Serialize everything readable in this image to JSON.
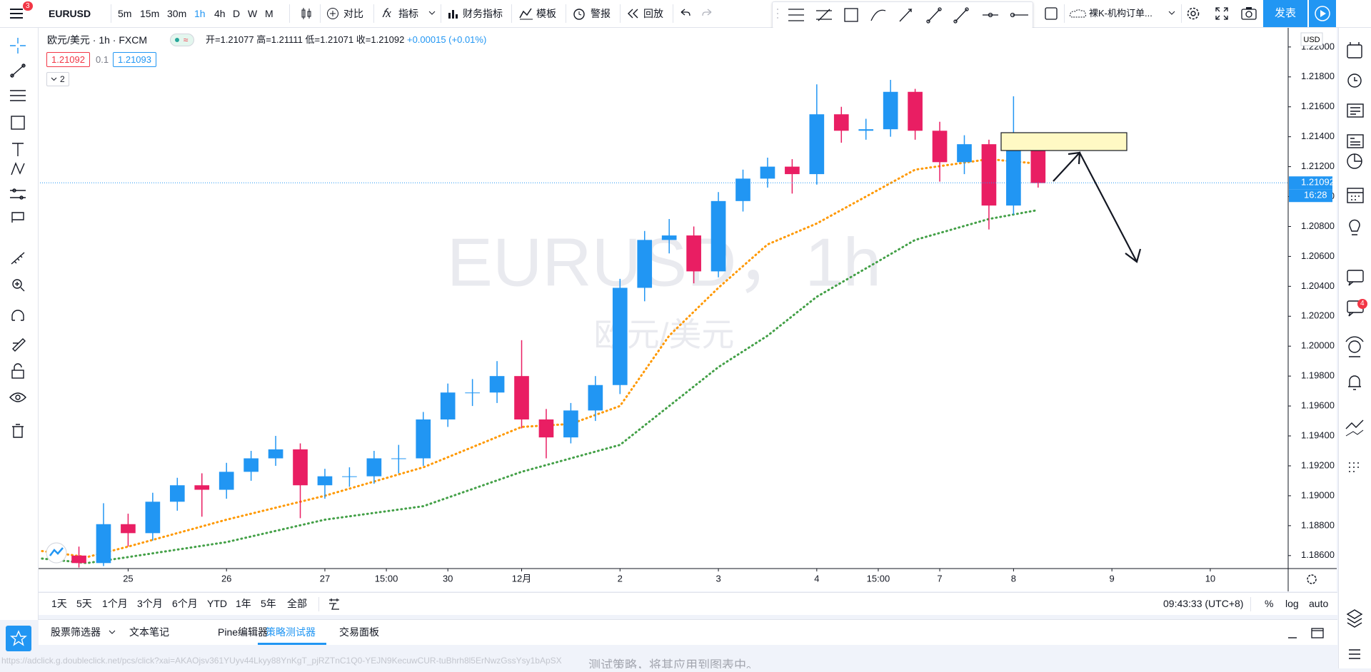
{
  "toolbar": {
    "symbol": "EURUSD",
    "notifications": "3",
    "intervals": [
      "5m",
      "15m",
      "30m",
      "1h",
      "4h",
      "D",
      "W",
      "M"
    ],
    "buttons": [
      "对比",
      "指标",
      "财务指标",
      "模板",
      "警报",
      "回放"
    ],
    "layout_name": "裸K-机构订单...",
    "publish": "发表"
  },
  "legend": {
    "symbol_line": "欧元/美元 · 1h · FXCM",
    "ohlc": [
      "开=1.21077",
      "高=1.21111",
      "低=1.21071",
      "收=1.21092",
      "+0.00015 (+0.01%)"
    ],
    "bid": "1.21092",
    "spread": "0.1",
    "ask": "1.21093",
    "collapsed": "2"
  },
  "chart_data": {
    "type": "candlestick",
    "title": "欧元/美元 · 1h · FXCM",
    "watermark": "EURUSD，1h",
    "watermark_sub": "欧元/美元",
    "currency": "USD",
    "x": [
      -12,
      -6,
      0,
      6,
      12,
      18,
      24,
      30,
      36,
      42,
      48,
      54,
      60,
      66,
      72,
      78,
      84,
      90,
      96,
      102,
      108,
      114,
      120,
      126,
      132,
      138,
      144,
      150,
      156,
      162,
      168,
      174,
      180,
      186,
      192,
      198,
      204,
      210,
      216,
      222
    ],
    "open": [
      1.186,
      1.1855,
      1.1881,
      1.1875,
      1.1896,
      1.1907,
      1.1904,
      1.1916,
      1.1925,
      1.1931,
      1.1907,
      1.1913,
      1.1913,
      1.1925,
      1.1925,
      1.1951,
      1.1969,
      1.1969,
      1.198,
      1.1951,
      1.1939,
      1.1957,
      1.1974,
      1.2039,
      1.2071,
      1.2074,
      1.205,
      1.2097,
      1.2112,
      1.212,
      1.2115,
      1.2155,
      1.2144,
      1.2145,
      1.217,
      1.2144,
      1.2123,
      1.2135,
      1.2094,
      1.2138
    ],
    "high": [
      1.1866,
      1.1895,
      1.1888,
      1.1902,
      1.1912,
      1.1915,
      1.1922,
      1.193,
      1.194,
      1.1935,
      1.1918,
      1.1919,
      1.193,
      1.1934,
      1.1956,
      1.1975,
      1.1978,
      1.199,
      1.2004,
      1.1958,
      1.1962,
      1.198,
      1.2045,
      1.2077,
      1.2085,
      1.208,
      1.2103,
      1.2118,
      1.2126,
      1.2125,
      1.2175,
      1.216,
      1.2152,
      1.2178,
      1.2172,
      1.215,
      1.2141,
      1.2138,
      1.2167,
      1.214
    ],
    "low": [
      1.1852,
      1.1853,
      1.1866,
      1.187,
      1.189,
      1.1886,
      1.1898,
      1.191,
      1.192,
      1.1885,
      1.1898,
      1.1906,
      1.1908,
      1.1915,
      1.192,
      1.1946,
      1.196,
      1.1962,
      1.1945,
      1.1925,
      1.1935,
      1.195,
      1.1968,
      1.203,
      1.2062,
      1.2042,
      1.2046,
      1.209,
      1.2106,
      1.2102,
      1.2108,
      1.2136,
      1.2138,
      1.214,
      1.2138,
      1.211,
      1.2115,
      1.2078,
      1.2088,
      1.2106
    ],
    "close": [
      1.1855,
      1.1881,
      1.1875,
      1.1896,
      1.1907,
      1.1904,
      1.1916,
      1.1925,
      1.1931,
      1.1907,
      1.1913,
      1.1913,
      1.1925,
      1.1925,
      1.1951,
      1.1969,
      1.1969,
      1.198,
      1.1951,
      1.1939,
      1.1957,
      1.1974,
      1.2039,
      1.2071,
      1.2074,
      1.205,
      1.2097,
      1.2112,
      1.212,
      1.2115,
      1.2155,
      1.2144,
      1.2145,
      1.217,
      1.2144,
      1.2123,
      1.2135,
      1.2094,
      1.2138,
      1.2109
    ],
    "up_color": "#2196f3",
    "down_color": "#e91e63",
    "overlays": [
      {
        "color": "#ff9800",
        "x": [
          -21,
          -10,
          0,
          24,
          48,
          72,
          96,
          108,
          120,
          132,
          144,
          156,
          168,
          192,
          210,
          222
        ],
        "values": [
          1.1863,
          1.1859,
          1.1866,
          1.1884,
          1.19,
          1.1919,
          1.1946,
          1.1948,
          1.196,
          1.2007,
          1.2039,
          1.2068,
          1.2082,
          1.2118,
          1.2125,
          1.2122
        ]
      },
      {
        "color": "#43a047",
        "x": [
          -21,
          -10,
          0,
          24,
          48,
          72,
          96,
          108,
          120,
          132,
          144,
          156,
          168,
          192,
          210,
          222
        ],
        "values": [
          1.1858,
          1.1855,
          1.1859,
          1.1869,
          1.1884,
          1.1893,
          1.1916,
          1.1925,
          1.1934,
          1.196,
          1.1986,
          1.2007,
          1.2033,
          1.2071,
          1.2085,
          1.2091
        ]
      }
    ],
    "last_price": 1.21092,
    "countdown": "16:28",
    "xlim": [
      -21.5,
      283
    ],
    "xticks": [
      {
        "value": 0,
        "label": "25"
      },
      {
        "value": 24,
        "label": "26"
      },
      {
        "value": 48,
        "label": "27"
      },
      {
        "value": 63,
        "label": "15:00"
      },
      {
        "value": 78,
        "label": "30"
      },
      {
        "value": 96,
        "label": "12月"
      },
      {
        "value": 120,
        "label": "2"
      },
      {
        "value": 144,
        "label": "3"
      },
      {
        "value": 168,
        "label": "4"
      },
      {
        "value": 183,
        "label": "15:00"
      },
      {
        "value": 198,
        "label": "7"
      },
      {
        "value": 216,
        "label": "8"
      },
      {
        "value": 240,
        "label": "9"
      },
      {
        "value": 264,
        "label": "10"
      }
    ],
    "ylim": [
      1.18518,
      1.22128
    ],
    "yticks": [
      {
        "value": 1.186,
        "label": "1.18600"
      },
      {
        "value": 1.188,
        "label": "1.18800"
      },
      {
        "value": 1.19,
        "label": "1.19000"
      },
      {
        "value": 1.192,
        "label": "1.19200"
      },
      {
        "value": 1.194,
        "label": "1.19400"
      },
      {
        "value": 1.196,
        "label": "1.19600"
      },
      {
        "value": 1.198,
        "label": "1.19800"
      },
      {
        "value": 1.2,
        "label": "1.20000"
      },
      {
        "value": 1.202,
        "label": "1.20200"
      },
      {
        "value": 1.204,
        "label": "1.20400"
      },
      {
        "value": 1.206,
        "label": "1.20600"
      },
      {
        "value": 1.208,
        "label": "1.20800"
      },
      {
        "value": 1.21,
        "label": "1.21000"
      },
      {
        "value": 1.212,
        "label": "1.21200"
      },
      {
        "value": 1.214,
        "label": "1.21400"
      },
      {
        "value": 1.216,
        "label": "1.21600"
      },
      {
        "value": 1.218,
        "label": "1.21800"
      },
      {
        "value": 1.22,
        "label": "1.22000"
      }
    ],
    "grid": false
  },
  "bottom_bar": {
    "ranges": [
      "1天",
      "5天",
      "1个月",
      "3个月",
      "6个月",
      "YTD",
      "1年",
      "5年",
      "全部"
    ],
    "clock": "09:43:33 (UTC+8)",
    "percent": "%",
    "log": "log",
    "auto": "auto"
  },
  "panel_tabs": [
    "股票筛选器",
    "文本笔记",
    "Pine编辑器",
    "策略测试器",
    "交易面板"
  ],
  "right_badge": "4",
  "status": {
    "url": "https://adclick.g.doubleclick.net/pcs/click?xai=AKAOjsv361YUyv44Lkyy88YnKgT_pjRZTnC1Q0-YEJN9KecuwCUR-tuBhrh8l5ErNwzGssYsy1bApSX",
    "message": "测试策略，将其应用到图表中。"
  }
}
